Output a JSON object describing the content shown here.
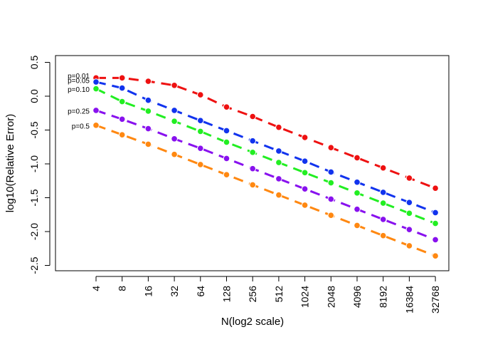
{
  "chart_data": {
    "type": "line",
    "title": "",
    "xlabel": "N(log2 scale)",
    "ylabel": "log10(Relative Error)",
    "x": [
      "4",
      "8",
      "16",
      "32",
      "64",
      "128",
      "256",
      "512",
      "1024",
      "2048",
      "4096",
      "8192",
      "16384",
      "32768"
    ],
    "yticks": [
      "0.5",
      "0.0",
      "-0.5",
      "-1.0",
      "-1.5",
      "-2.0",
      "-2.5"
    ],
    "ylim": [
      -2.6,
      0.6
    ],
    "yticks_values": [
      0.5,
      0.0,
      -0.5,
      -1.0,
      -1.5,
      -2.0,
      -2.5
    ],
    "series": [
      {
        "name": "p=0.01",
        "color": "#ee1111",
        "values": [
          0.27,
          0.27,
          0.22,
          0.16,
          0.02,
          -0.16,
          -0.3,
          -0.46,
          -0.61,
          -0.76,
          -0.91,
          -1.06,
          -1.21,
          -1.36
        ]
      },
      {
        "name": "p=0.05",
        "color": "#1133ee",
        "values": [
          0.21,
          0.12,
          -0.06,
          -0.21,
          -0.36,
          -0.51,
          -0.66,
          -0.81,
          -0.96,
          -1.12,
          -1.27,
          -1.42,
          -1.57,
          -1.72
        ]
      },
      {
        "name": "p=0.10",
        "color": "#22ee22",
        "values": [
          0.11,
          -0.08,
          -0.22,
          -0.37,
          -0.52,
          -0.68,
          -0.83,
          -0.98,
          -1.13,
          -1.28,
          -1.43,
          -1.58,
          -1.73,
          -1.88
        ]
      },
      {
        "name": "p=0.25",
        "color": "#8811ee",
        "values": [
          -0.21,
          -0.34,
          -0.48,
          -0.63,
          -0.77,
          -0.92,
          -1.07,
          -1.22,
          -1.37,
          -1.52,
          -1.67,
          -1.82,
          -1.97,
          -2.12
        ]
      },
      {
        "name": "p=0.5",
        "color": "#ff8811",
        "values": [
          -0.43,
          -0.57,
          -0.71,
          -0.86,
          -1.01,
          -1.16,
          -1.31,
          -1.46,
          -1.61,
          -1.76,
          -1.91,
          -2.06,
          -2.21,
          -2.36
        ]
      }
    ]
  }
}
